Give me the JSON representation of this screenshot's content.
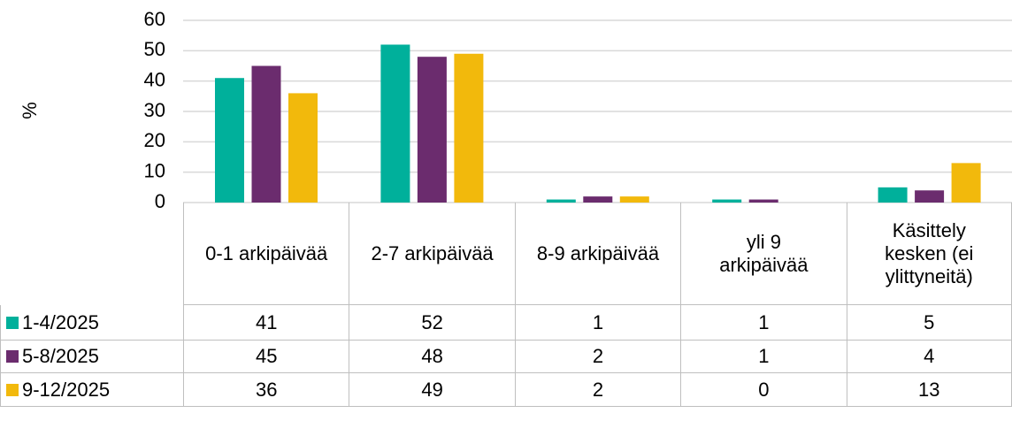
{
  "chart_data": {
    "type": "bar",
    "y_label": "%",
    "categories": [
      "0-1 arkipäivää",
      "2-7 arkipäivää",
      "8-9 arkipäivää",
      "yli 9 arkipäivää",
      "Käsittely kesken (ei ylittyneitä)"
    ],
    "series": [
      {
        "name": "1-4/2025",
        "color": "#00b09b",
        "values": [
          41,
          52,
          1,
          1,
          5
        ]
      },
      {
        "name": "5-8/2025",
        "color": "#6b2c6e",
        "values": [
          45,
          48,
          2,
          1,
          4
        ]
      },
      {
        "name": "9-12/2025",
        "color": "#f2b90c",
        "values": [
          36,
          49,
          2,
          0,
          13
        ]
      }
    ],
    "ylim": [
      0,
      60
    ],
    "yticks": [
      0,
      10,
      20,
      30,
      40,
      50,
      60
    ],
    "grid": true
  }
}
